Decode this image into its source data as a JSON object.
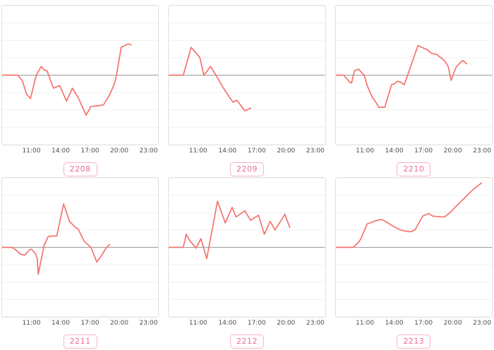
{
  "page": {
    "background": "#ffffff"
  },
  "theme": {
    "line_color": "#f5726c",
    "zero_line_color": "#9a9a9a",
    "gridline_color": "#f0f0f0",
    "panel_border_color": "#e0e0e0",
    "panel_bg": "#ffffff",
    "tick_label_color": "#4d4d4d",
    "badge_text_color": "#ee6a97",
    "badge_border_color": "#f7b3c9"
  },
  "chart_data": [
    {
      "type": "line",
      "id": "2208",
      "legend": "none",
      "grid": "horizontal",
      "xlim_hours": [
        8,
        24
      ],
      "ylim": [
        -4,
        4
      ],
      "zero_baseline": true,
      "x_ticks": [
        {
          "label": "11:00",
          "hour": 11
        },
        {
          "label": "14:00",
          "hour": 14
        },
        {
          "label": "17:00",
          "hour": 17
        },
        {
          "label": "20:00",
          "hour": 20
        },
        {
          "label": "23:00",
          "hour": 23
        }
      ],
      "points_hour_value": [
        [
          8.0,
          0
        ],
        [
          9.6,
          0
        ],
        [
          10.1,
          -0.35
        ],
        [
          10.5,
          -1.1
        ],
        [
          10.9,
          -1.35
        ],
        [
          11.5,
          0
        ],
        [
          12.0,
          0.5
        ],
        [
          12.3,
          0.3
        ],
        [
          12.6,
          0.25
        ],
        [
          13.25,
          -0.75
        ],
        [
          13.9,
          -0.6
        ],
        [
          14.6,
          -1.5
        ],
        [
          15.2,
          -0.75
        ],
        [
          15.8,
          -1.3
        ],
        [
          16.6,
          -2.3
        ],
        [
          17.1,
          -1.8
        ],
        [
          18.0,
          -1.75
        ],
        [
          18.4,
          -1.7
        ],
        [
          19.0,
          -1.15
        ],
        [
          19.5,
          -0.5
        ],
        [
          19.7,
          -0.05
        ],
        [
          20.2,
          1.6
        ],
        [
          20.9,
          1.8
        ],
        [
          21.2,
          1.75
        ]
      ]
    },
    {
      "type": "line",
      "id": "2209",
      "legend": "none",
      "grid": "horizontal",
      "xlim_hours": [
        8,
        24
      ],
      "ylim": [
        -4,
        4
      ],
      "zero_baseline": true,
      "x_ticks": [
        {
          "label": "11:00",
          "hour": 11
        },
        {
          "label": "14:00",
          "hour": 14
        },
        {
          "label": "17:00",
          "hour": 17
        },
        {
          "label": "20:00",
          "hour": 20
        },
        {
          "label": "23:00",
          "hour": 23
        }
      ],
      "points_hour_value": [
        [
          8.0,
          0
        ],
        [
          9.5,
          0
        ],
        [
          10.3,
          1.6
        ],
        [
          11.0,
          1.15
        ],
        [
          11.2,
          1.0
        ],
        [
          11.6,
          0
        ],
        [
          12.3,
          0.5
        ],
        [
          12.9,
          -0.05
        ],
        [
          13.5,
          -0.65
        ],
        [
          14.2,
          -1.25
        ],
        [
          14.6,
          -1.55
        ],
        [
          15.0,
          -1.45
        ],
        [
          15.8,
          -2.05
        ],
        [
          16.4,
          -1.9
        ]
      ]
    },
    {
      "type": "line",
      "id": "2210",
      "legend": "none",
      "grid": "horizontal",
      "xlim_hours": [
        8,
        24
      ],
      "ylim": [
        -4,
        4
      ],
      "zero_baseline": true,
      "x_ticks": [
        {
          "label": "11:00",
          "hour": 11
        },
        {
          "label": "14:00",
          "hour": 14
        },
        {
          "label": "17:00",
          "hour": 17
        },
        {
          "label": "20:00",
          "hour": 20
        },
        {
          "label": "23:00",
          "hour": 23
        }
      ],
      "points_hour_value": [
        [
          8.0,
          0
        ],
        [
          8.8,
          0
        ],
        [
          9.4,
          -0.4
        ],
        [
          9.6,
          -0.45
        ],
        [
          9.9,
          0.25
        ],
        [
          10.3,
          0.35
        ],
        [
          10.9,
          0
        ],
        [
          11.2,
          -0.6
        ],
        [
          11.7,
          -1.25
        ],
        [
          12.2,
          -1.65
        ],
        [
          12.4,
          -1.85
        ],
        [
          13.0,
          -1.85
        ],
        [
          13.7,
          -0.55
        ],
        [
          14.0,
          -0.5
        ],
        [
          14.3,
          -0.35
        ],
        [
          14.6,
          -0.4
        ],
        [
          15.0,
          -0.55
        ],
        [
          16.4,
          1.7
        ],
        [
          17.4,
          1.45
        ],
        [
          17.8,
          1.25
        ],
        [
          18.3,
          1.2
        ],
        [
          19.1,
          0.85
        ],
        [
          19.5,
          0.5
        ],
        [
          19.8,
          -0.3
        ],
        [
          20.3,
          0.45
        ],
        [
          20.7,
          0.7
        ],
        [
          21.0,
          0.85
        ],
        [
          21.4,
          0.65
        ]
      ]
    },
    {
      "type": "line",
      "id": "2211",
      "legend": "none",
      "grid": "horizontal",
      "xlim_hours": [
        8,
        24
      ],
      "ylim": [
        -4,
        4
      ],
      "zero_baseline": true,
      "x_ticks": [
        {
          "label": "11:00",
          "hour": 11
        },
        {
          "label": "14:00",
          "hour": 14
        },
        {
          "label": "17:00",
          "hour": 17
        },
        {
          "label": "20:00",
          "hour": 20
        },
        {
          "label": "23:00",
          "hour": 23
        }
      ],
      "points_hour_value": [
        [
          8.0,
          0
        ],
        [
          9.0,
          0
        ],
        [
          9.3,
          -0.1
        ],
        [
          9.9,
          -0.4
        ],
        [
          10.3,
          -0.45
        ],
        [
          10.8,
          -0.15
        ],
        [
          11.0,
          -0.1
        ],
        [
          11.4,
          -0.35
        ],
        [
          11.6,
          -0.65
        ],
        [
          11.7,
          -1.55
        ],
        [
          12.3,
          0.1
        ],
        [
          12.7,
          0.6
        ],
        [
          13.0,
          0.65
        ],
        [
          13.6,
          0.65
        ],
        [
          14.3,
          2.5
        ],
        [
          14.9,
          1.5
        ],
        [
          15.5,
          1.15
        ],
        [
          15.8,
          1.05
        ],
        [
          16.4,
          0.35
        ],
        [
          16.9,
          0.1
        ],
        [
          17.1,
          0
        ],
        [
          17.7,
          -0.85
        ],
        [
          18.2,
          -0.45
        ],
        [
          18.7,
          0
        ],
        [
          19.0,
          0.15
        ]
      ]
    },
    {
      "type": "line",
      "id": "2212",
      "legend": "none",
      "grid": "horizontal",
      "xlim_hours": [
        8,
        24
      ],
      "ylim": [
        -4,
        4
      ],
      "zero_baseline": true,
      "x_ticks": [
        {
          "label": "11:00",
          "hour": 11
        },
        {
          "label": "14:00",
          "hour": 14
        },
        {
          "label": "17:00",
          "hour": 17
        },
        {
          "label": "20:00",
          "hour": 20
        },
        {
          "label": "23:00",
          "hour": 23
        }
      ],
      "points_hour_value": [
        [
          8.0,
          0
        ],
        [
          9.5,
          0
        ],
        [
          9.8,
          0.75
        ],
        [
          10.2,
          0.35
        ],
        [
          10.6,
          0.1
        ],
        [
          10.8,
          -0.05
        ],
        [
          11.3,
          0.5
        ],
        [
          11.9,
          -0.65
        ],
        [
          13.0,
          2.65
        ],
        [
          13.8,
          1.4
        ],
        [
          14.5,
          2.3
        ],
        [
          14.9,
          1.75
        ],
        [
          15.8,
          2.1
        ],
        [
          16.4,
          1.55
        ],
        [
          17.2,
          1.85
        ],
        [
          17.8,
          0.75
        ],
        [
          18.4,
          1.5
        ],
        [
          18.9,
          1.0
        ],
        [
          19.9,
          1.9
        ],
        [
          20.4,
          1.15
        ]
      ]
    },
    {
      "type": "line",
      "id": "2213",
      "legend": "none",
      "grid": "horizontal",
      "xlim_hours": [
        8,
        24
      ],
      "ylim": [
        -4,
        4
      ],
      "zero_baseline": true,
      "x_ticks": [
        {
          "label": "11:00",
          "hour": 11
        },
        {
          "label": "14:00",
          "hour": 14
        },
        {
          "label": "17:00",
          "hour": 17
        },
        {
          "label": "20:00",
          "hour": 20
        },
        {
          "label": "23:00",
          "hour": 23
        }
      ],
      "points_hour_value": [
        [
          8.0,
          0
        ],
        [
          9.8,
          0
        ],
        [
          10.4,
          0.35
        ],
        [
          10.6,
          0.55
        ],
        [
          11.2,
          1.35
        ],
        [
          11.5,
          1.4
        ],
        [
          11.9,
          1.5
        ],
        [
          12.6,
          1.6
        ],
        [
          12.9,
          1.55
        ],
        [
          13.9,
          1.2
        ],
        [
          14.6,
          1.0
        ],
        [
          15.4,
          0.9
        ],
        [
          15.7,
          0.9
        ],
        [
          16.1,
          1.0
        ],
        [
          16.9,
          1.8
        ],
        [
          17.5,
          1.95
        ],
        [
          17.9,
          1.8
        ],
        [
          18.7,
          1.75
        ],
        [
          19.1,
          1.75
        ],
        [
          19.7,
          2.0
        ],
        [
          20.3,
          2.35
        ],
        [
          21.1,
          2.8
        ],
        [
          22.0,
          3.3
        ],
        [
          22.9,
          3.7
        ]
      ]
    }
  ]
}
